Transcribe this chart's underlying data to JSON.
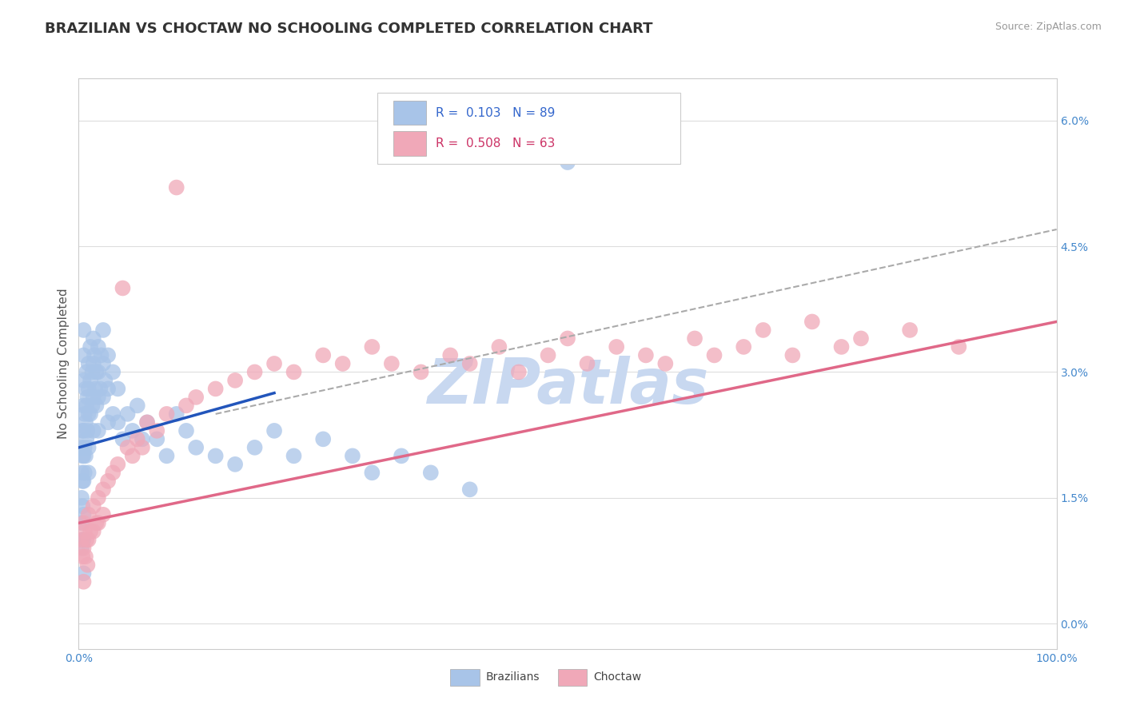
{
  "title": "BRAZILIAN VS CHOCTAW NO SCHOOLING COMPLETED CORRELATION CHART",
  "source": "Source: ZipAtlas.com",
  "ylabel": "No Schooling Completed",
  "legend_r1": "R =  0.103   N = 89",
  "legend_r2": "R =  0.508   N = 63",
  "legend_label1": "Brazilians",
  "legend_label2": "Choctaw",
  "ytick_vals": [
    0.0,
    1.5,
    3.0,
    4.5,
    6.0
  ],
  "xlim": [
    0.0,
    100.0
  ],
  "ylim": [
    -0.3,
    6.5
  ],
  "blue_color": "#a8c4e8",
  "pink_color": "#f0a8b8",
  "blue_line_color": "#2255bb",
  "pink_line_color": "#e06888",
  "dashed_line_color": "#aaaaaa",
  "watermark": "ZIPatlas",
  "watermark_color": "#c8d8f0",
  "title_fontsize": 13,
  "axis_label_fontsize": 11,
  "tick_fontsize": 10,
  "brazil_x": [
    0.3,
    0.3,
    0.3,
    0.3,
    0.3,
    0.4,
    0.4,
    0.4,
    0.4,
    0.4,
    0.5,
    0.5,
    0.5,
    0.5,
    0.5,
    0.5,
    0.5,
    0.5,
    0.5,
    0.5,
    0.6,
    0.6,
    0.6,
    0.7,
    0.7,
    0.7,
    0.8,
    0.8,
    0.8,
    0.9,
    0.9,
    1.0,
    1.0,
    1.0,
    1.0,
    1.0,
    1.2,
    1.2,
    1.2,
    1.4,
    1.4,
    1.5,
    1.5,
    1.5,
    1.5,
    1.6,
    1.7,
    1.8,
    1.8,
    2.0,
    2.0,
    2.0,
    2.0,
    2.2,
    2.3,
    2.5,
    2.5,
    2.5,
    2.7,
    3.0,
    3.0,
    3.0,
    3.5,
    3.5,
    4.0,
    4.0,
    4.5,
    5.0,
    5.5,
    6.0,
    6.5,
    7.0,
    8.0,
    9.0,
    10.0,
    11.0,
    12.0,
    14.0,
    16.0,
    18.0,
    20.0,
    22.0,
    25.0,
    28.0,
    30.0,
    33.0,
    36.0,
    40.0,
    50.0
  ],
  "brazil_y": [
    2.1,
    1.8,
    1.5,
    1.2,
    0.9,
    2.3,
    2.0,
    1.7,
    1.4,
    1.0,
    3.5,
    3.2,
    2.9,
    2.6,
    2.3,
    2.0,
    1.7,
    1.3,
    1.0,
    0.6,
    2.5,
    2.1,
    1.8,
    2.8,
    2.4,
    2.0,
    3.0,
    2.6,
    2.2,
    2.7,
    2.3,
    3.1,
    2.8,
    2.5,
    2.1,
    1.8,
    3.3,
    2.9,
    2.5,
    3.0,
    2.6,
    3.4,
    3.1,
    2.7,
    2.3,
    3.2,
    2.8,
    3.0,
    2.6,
    3.3,
    3.0,
    2.7,
    2.3,
    2.8,
    3.2,
    3.5,
    3.1,
    2.7,
    2.9,
    3.2,
    2.8,
    2.4,
    3.0,
    2.5,
    2.8,
    2.4,
    2.2,
    2.5,
    2.3,
    2.6,
    2.2,
    2.4,
    2.2,
    2.0,
    2.5,
    2.3,
    2.1,
    2.0,
    1.9,
    2.1,
    2.3,
    2.0,
    2.2,
    2.0,
    1.8,
    2.0,
    1.8,
    1.6,
    5.5
  ],
  "choctaw_x": [
    0.3,
    0.4,
    0.5,
    0.5,
    0.5,
    0.6,
    0.7,
    0.8,
    0.9,
    1.0,
    1.0,
    1.2,
    1.5,
    1.5,
    1.8,
    2.0,
    2.0,
    2.5,
    2.5,
    3.0,
    3.5,
    4.0,
    4.5,
    5.0,
    5.5,
    6.0,
    6.5,
    7.0,
    8.0,
    9.0,
    10.0,
    11.0,
    12.0,
    14.0,
    16.0,
    18.0,
    20.0,
    22.0,
    25.0,
    27.0,
    30.0,
    32.0,
    35.0,
    38.0,
    40.0,
    43.0,
    45.0,
    48.0,
    50.0,
    52.0,
    55.0,
    58.0,
    60.0,
    63.0,
    65.0,
    68.0,
    70.0,
    73.0,
    75.0,
    78.0,
    80.0,
    85.0,
    90.0
  ],
  "choctaw_y": [
    1.0,
    0.8,
    1.2,
    0.9,
    0.5,
    1.1,
    0.8,
    1.0,
    0.7,
    1.3,
    1.0,
    1.1,
    1.4,
    1.1,
    1.2,
    1.5,
    1.2,
    1.6,
    1.3,
    1.7,
    1.8,
    1.9,
    4.0,
    2.1,
    2.0,
    2.2,
    2.1,
    2.4,
    2.3,
    2.5,
    5.2,
    2.6,
    2.7,
    2.8,
    2.9,
    3.0,
    3.1,
    3.0,
    3.2,
    3.1,
    3.3,
    3.1,
    3.0,
    3.2,
    3.1,
    3.3,
    3.0,
    3.2,
    3.4,
    3.1,
    3.3,
    3.2,
    3.1,
    3.4,
    3.2,
    3.3,
    3.5,
    3.2,
    3.6,
    3.3,
    3.4,
    3.5,
    3.3
  ],
  "brazil_trendline_x": [
    0.0,
    20.0
  ],
  "brazil_trendline_y": [
    2.1,
    2.75
  ],
  "choctaw_trendline_x": [
    0.0,
    100.0
  ],
  "choctaw_trendline_y": [
    1.2,
    3.6
  ],
  "dashed_trendline_x": [
    14.0,
    100.0
  ],
  "dashed_trendline_y": [
    2.5,
    4.7
  ]
}
